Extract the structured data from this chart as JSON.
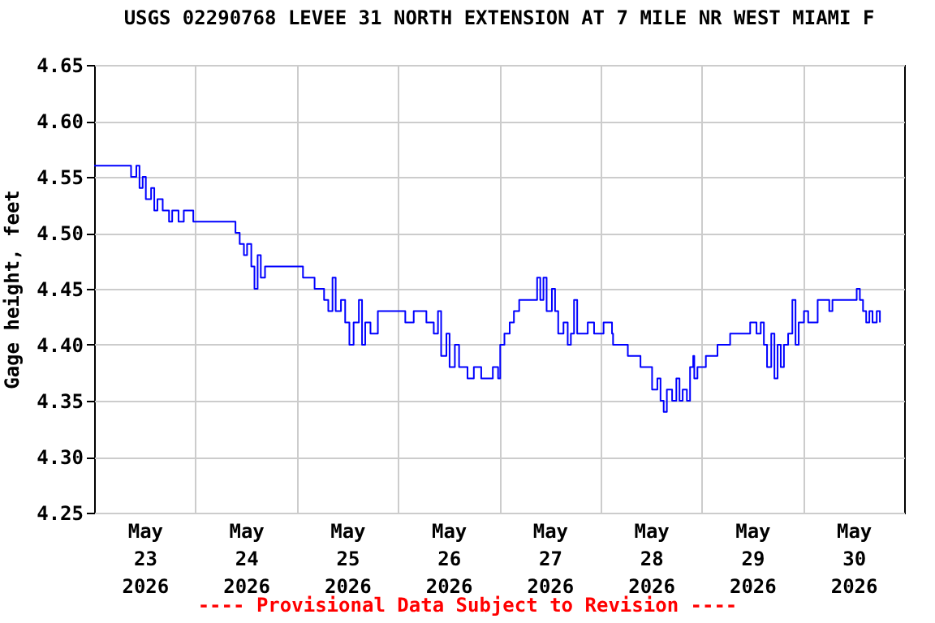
{
  "chart_data": {
    "type": "step",
    "title": "USGS 02290768 LEVEE 31 NORTH EXTENSION AT 7 MILE NR WEST MIAMI F",
    "ylabel": "Gage height, feet",
    "annotations": [
      "---- Provisional Data Subject to Revision ----"
    ],
    "x": [
      "2026-05-23T00:00",
      "2026-05-23T08:30",
      "2026-05-23T08:45",
      "2026-05-23T10:00",
      "2026-05-23T10:45",
      "2026-05-23T11:30",
      "2026-05-23T12:15",
      "2026-05-23T13:30",
      "2026-05-23T14:15",
      "2026-05-23T15:00",
      "2026-05-23T16:15",
      "2026-05-23T17:45",
      "2026-05-23T18:30",
      "2026-05-23T20:00",
      "2026-05-23T21:15",
      "2026-05-23T23:30",
      "2026-05-24T08:45",
      "2026-05-24T09:30",
      "2026-05-24T10:30",
      "2026-05-24T11:30",
      "2026-05-24T12:15",
      "2026-05-24T13:15",
      "2026-05-24T14:00",
      "2026-05-24T14:45",
      "2026-05-24T15:30",
      "2026-05-24T16:30",
      "2026-05-25T00:45",
      "2026-05-25T01:30",
      "2026-05-25T04:15",
      "2026-05-25T06:30",
      "2026-05-25T07:30",
      "2026-05-25T08:30",
      "2026-05-25T09:15",
      "2026-05-25T10:30",
      "2026-05-25T11:30",
      "2026-05-25T12:30",
      "2026-05-25T13:30",
      "2026-05-25T14:45",
      "2026-05-25T15:30",
      "2026-05-25T16:15",
      "2026-05-25T17:30",
      "2026-05-25T19:15",
      "2026-05-25T23:45",
      "2026-05-26T01:45",
      "2026-05-26T03:45",
      "2026-05-26T06:45",
      "2026-05-26T08:30",
      "2026-05-26T09:30",
      "2026-05-26T10:15",
      "2026-05-26T11:30",
      "2026-05-26T12:15",
      "2026-05-26T13:30",
      "2026-05-26T14:30",
      "2026-05-26T16:30",
      "2026-05-26T18:00",
      "2026-05-26T19:45",
      "2026-05-26T22:30",
      "2026-05-26T23:45",
      "2026-05-27T00:15",
      "2026-05-27T01:15",
      "2026-05-27T02:30",
      "2026-05-27T03:30",
      "2026-05-27T04:45",
      "2026-05-27T08:15",
      "2026-05-27T09:00",
      "2026-05-27T09:45",
      "2026-05-27T10:30",
      "2026-05-27T11:15",
      "2026-05-27T12:30",
      "2026-05-27T13:15",
      "2026-05-27T14:00",
      "2026-05-27T15:15",
      "2026-05-27T16:15",
      "2026-05-27T17:00",
      "2026-05-27T17:45",
      "2026-05-27T18:30",
      "2026-05-27T21:00",
      "2026-05-27T22:30",
      "2026-05-28T00:45",
      "2026-05-28T02:45",
      "2026-05-28T03:00",
      "2026-05-28T06:30",
      "2026-05-28T09:30",
      "2026-05-28T12:15",
      "2026-05-28T13:30",
      "2026-05-28T14:15",
      "2026-05-28T15:00",
      "2026-05-28T15:45",
      "2026-05-28T17:00",
      "2026-05-28T18:00",
      "2026-05-28T18:45",
      "2026-05-28T19:30",
      "2026-05-28T20:30",
      "2026-05-28T21:15",
      "2026-05-28T22:00",
      "2026-05-28T22:15",
      "2026-05-28T23:00",
      "2026-05-29T01:00",
      "2026-05-29T03:45",
      "2026-05-29T06:45",
      "2026-05-29T11:30",
      "2026-05-29T13:00",
      "2026-05-29T14:00",
      "2026-05-29T14:45",
      "2026-05-29T15:30",
      "2026-05-29T16:30",
      "2026-05-29T17:15",
      "2026-05-29T18:00",
      "2026-05-29T18:45",
      "2026-05-29T19:30",
      "2026-05-29T20:30",
      "2026-05-29T21:30",
      "2026-05-29T22:15",
      "2026-05-29T23:00",
      "2026-05-30T00:15",
      "2026-05-30T01:15",
      "2026-05-30T03:30",
      "2026-05-30T06:15",
      "2026-05-30T07:00",
      "2026-05-30T12:30",
      "2026-05-30T12:45",
      "2026-05-30T13:30",
      "2026-05-30T14:15",
      "2026-05-30T15:00",
      "2026-05-30T15:45",
      "2026-05-30T16:30",
      "2026-05-30T17:30",
      "2026-05-30T18:15"
    ],
    "series": [
      {
        "color": "#0000ff",
        "values": [
          4.56,
          4.56,
          4.55,
          4.56,
          4.54,
          4.55,
          4.53,
          4.54,
          4.52,
          4.53,
          4.52,
          4.51,
          4.52,
          4.51,
          4.52,
          4.51,
          4.51,
          4.5,
          4.49,
          4.48,
          4.49,
          4.47,
          4.45,
          4.48,
          4.46,
          4.47,
          4.47,
          4.46,
          4.45,
          4.44,
          4.43,
          4.46,
          4.43,
          4.44,
          4.42,
          4.4,
          4.42,
          4.44,
          4.4,
          4.42,
          4.41,
          4.43,
          4.43,
          4.42,
          4.43,
          4.42,
          4.41,
          4.43,
          4.39,
          4.41,
          4.38,
          4.4,
          4.38,
          4.37,
          4.38,
          4.37,
          4.38,
          4.37,
          4.4,
          4.41,
          4.42,
          4.43,
          4.44,
          4.44,
          4.46,
          4.44,
          4.46,
          4.43,
          4.45,
          4.43,
          4.41,
          4.42,
          4.4,
          4.41,
          4.44,
          4.41,
          4.42,
          4.41,
          4.42,
          4.41,
          4.4,
          4.39,
          4.38,
          4.36,
          4.37,
          4.35,
          4.34,
          4.36,
          4.35,
          4.37,
          4.35,
          4.36,
          4.35,
          4.38,
          4.39,
          4.37,
          4.38,
          4.39,
          4.4,
          4.41,
          4.42,
          4.41,
          4.42,
          4.4,
          4.38,
          4.41,
          4.37,
          4.4,
          4.38,
          4.4,
          4.41,
          4.44,
          4.4,
          4.42,
          4.43,
          4.42,
          4.44,
          4.43,
          4.44,
          4.44,
          4.45,
          4.44,
          4.43,
          4.42,
          4.43,
          4.42,
          4.43,
          4.42
        ]
      }
    ],
    "xlim": [
      "2026-05-23",
      "2026-05-31"
    ],
    "xticks": [
      {
        "value": "2026-05-23T12:00",
        "label": "May\n23\n2026"
      },
      {
        "value": "2026-05-24",
        "label": null
      },
      {
        "value": "2026-05-24T12:00",
        "label": "May\n24\n2026"
      },
      {
        "value": "2026-05-25",
        "label": null
      },
      {
        "value": "2026-05-25T12:00",
        "label": "May\n25\n2026"
      },
      {
        "value": "2026-05-26",
        "label": null
      },
      {
        "value": "2026-05-26T12:00",
        "label": "May\n26\n2026"
      },
      {
        "value": "2026-05-27",
        "label": null
      },
      {
        "value": "2026-05-27T12:00",
        "label": "May\n27\n2026"
      },
      {
        "value": "2026-05-28",
        "label": null
      },
      {
        "value": "2026-05-28T12:00",
        "label": "May\n28\n2026"
      },
      {
        "value": "2026-05-29",
        "label": null
      },
      {
        "value": "2026-05-29T12:00",
        "label": "May\n29\n2026"
      },
      {
        "value": "2026-05-30",
        "label": null
      },
      {
        "value": "2026-05-30T12:00",
        "label": "May\n30\n2026"
      }
    ],
    "ylim": [
      4.25,
      4.65
    ],
    "yticks": [
      {
        "value": 4.25,
        "label": "4.25"
      },
      {
        "value": 4.3,
        "label": "4.30"
      },
      {
        "value": 4.35,
        "label": "4.35"
      },
      {
        "value": 4.4,
        "label": "4.40"
      },
      {
        "value": 4.45,
        "label": "4.45"
      },
      {
        "value": 4.5,
        "label": "4.50"
      },
      {
        "value": 4.55,
        "label": "4.55"
      },
      {
        "value": 4.6,
        "label": "4.60"
      },
      {
        "value": 4.65,
        "label": "4.65"
      }
    ],
    "grid": true,
    "line_style": "solid"
  }
}
